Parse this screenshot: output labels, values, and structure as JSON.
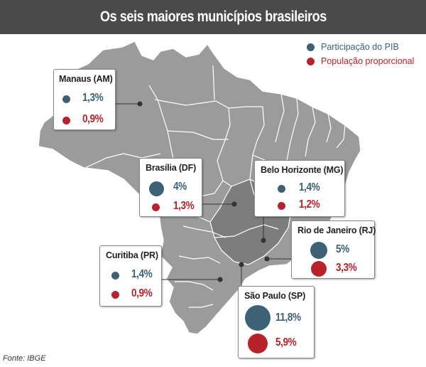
{
  "title": "Os seis maiores municípios brasileiros",
  "legend": {
    "pib_label": "Participação do PIB",
    "pop_label": "População proporcional",
    "pib_color": "#3d6175",
    "pop_color": "#b8232b"
  },
  "cities": {
    "manaus": {
      "name": "Manaus (AM)",
      "pib": "1,3%",
      "pop": "0,9%"
    },
    "brasilia": {
      "name": "Brasília (DF)",
      "pib": "4%",
      "pop": "1,3%"
    },
    "bh": {
      "name": "Belo Horizonte (MG)",
      "pib": "1,4%",
      "pop": "1,2%"
    },
    "rio": {
      "name": "Rio de Janeiro (RJ)",
      "pib": "5%",
      "pop": "3,3%"
    },
    "curitiba": {
      "name": "Curitiba (PR)",
      "pib": "1,4%",
      "pop": "0,9%"
    },
    "sp": {
      "name": "São Paulo (SP)",
      "pib": "11,8%",
      "pop": "5,9%"
    }
  },
  "source": "Fonte: IBGE",
  "colors": {
    "title_bar": "#4a4a4a",
    "map_fill": "#9b9b9b",
    "map_border": "#ffffff",
    "southeast_fill": "#7d7d7d"
  }
}
